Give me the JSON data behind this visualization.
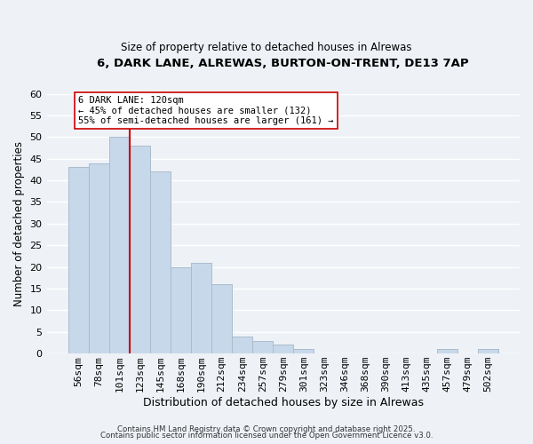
{
  "title_line1": "6, DARK LANE, ALREWAS, BURTON-ON-TRENT, DE13 7AP",
  "title_line2": "Size of property relative to detached houses in Alrewas",
  "xlabel": "Distribution of detached houses by size in Alrewas",
  "ylabel": "Number of detached properties",
  "bar_color": "#c8d8eb",
  "bar_edge_color": "#aabccc",
  "categories": [
    "56sqm",
    "78sqm",
    "101sqm",
    "123sqm",
    "145sqm",
    "168sqm",
    "190sqm",
    "212sqm",
    "234sqm",
    "257sqm",
    "279sqm",
    "301sqm",
    "323sqm",
    "346sqm",
    "368sqm",
    "390sqm",
    "413sqm",
    "435sqm",
    "457sqm",
    "479sqm",
    "502sqm"
  ],
  "values": [
    43,
    44,
    50,
    48,
    42,
    20,
    21,
    16,
    4,
    3,
    2,
    1,
    0,
    0,
    0,
    0,
    0,
    0,
    1,
    0,
    1
  ],
  "ylim": [
    0,
    60
  ],
  "yticks": [
    0,
    5,
    10,
    15,
    20,
    25,
    30,
    35,
    40,
    45,
    50,
    55,
    60
  ],
  "vline_index": 3,
  "vline_color": "#cc0000",
  "annotation_title": "6 DARK LANE: 120sqm",
  "annotation_line2": "← 45% of detached houses are smaller (132)",
  "annotation_line3": "55% of semi-detached houses are larger (161) →",
  "footer_line1": "Contains HM Land Registry data © Crown copyright and database right 2025.",
  "footer_line2": "Contains public sector information licensed under the Open Government Licence v3.0.",
  "background_color": "#eef2f7",
  "grid_color": "#ffffff"
}
